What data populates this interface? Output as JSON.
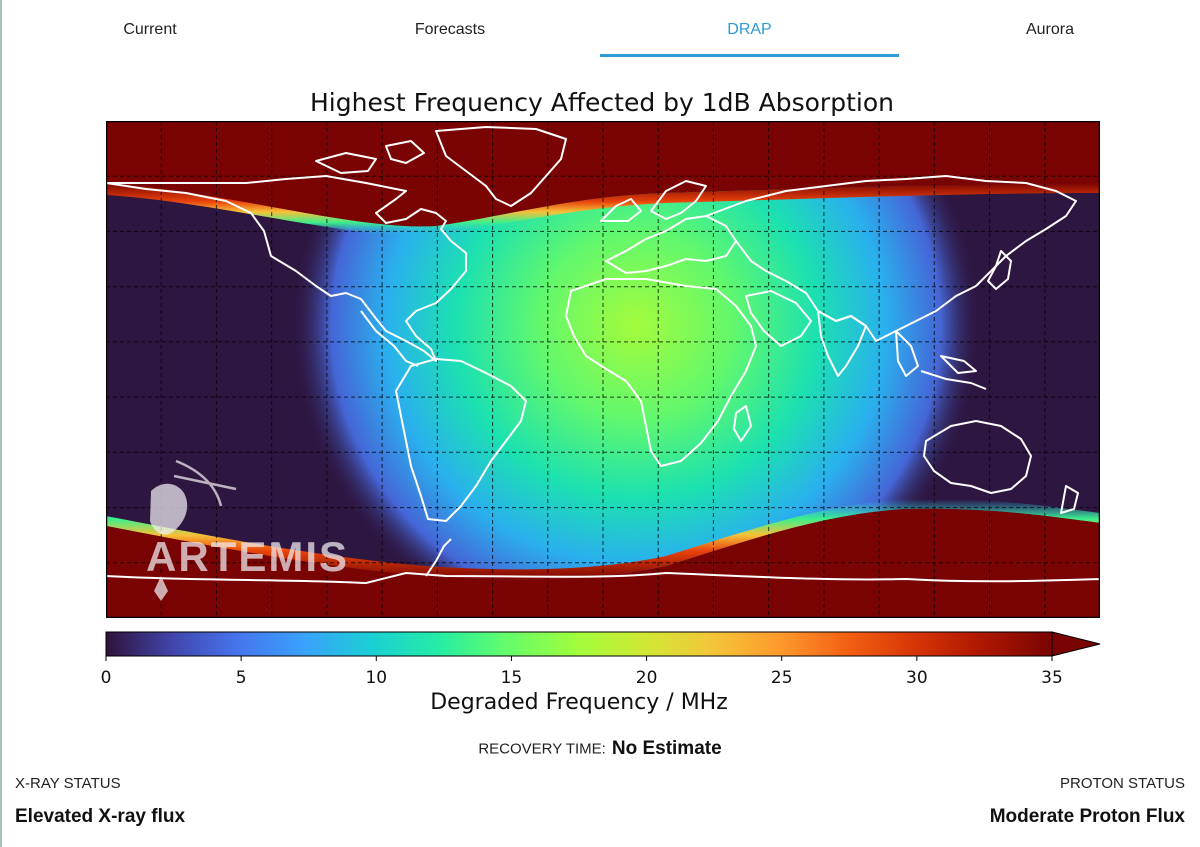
{
  "tabs": [
    {
      "label": "Current",
      "active": false
    },
    {
      "label": "Forecasts",
      "active": false
    },
    {
      "label": "DRAP",
      "active": true
    },
    {
      "label": "Aurora",
      "active": false
    }
  ],
  "colors": {
    "accent": "#2e9ad6",
    "colormap_low": "#2d1640",
    "colormap_high": "#7a0403",
    "coastline": "#ffffff",
    "grid": "#000000"
  },
  "chart_data": {
    "type": "heatmap",
    "title": "Highest Frequency Affected by 1dB Absorption",
    "colorbar": {
      "label": "Degraded Frequency / MHz",
      "ticks": [
        0,
        5,
        10,
        15,
        20,
        25,
        30,
        35
      ],
      "range": [
        0,
        35
      ],
      "extend": "max",
      "colormap": "turbo"
    },
    "map": {
      "projection": "plate-carree",
      "coastlines": true,
      "gridlines": "dashed",
      "peak_value_approx": 18,
      "peak_region": "central Africa / Europe (dayside)",
      "polar_caps_value": 35,
      "watermark": "ARTEMIS"
    }
  },
  "status": {
    "recovery_label": "RECOVERY TIME:",
    "recovery_value": "No Estimate",
    "xray_label": "X-RAY STATUS",
    "xray_value": "Elevated X-ray flux",
    "proton_label": "PROTON STATUS",
    "proton_value": "Moderate Proton Flux"
  }
}
